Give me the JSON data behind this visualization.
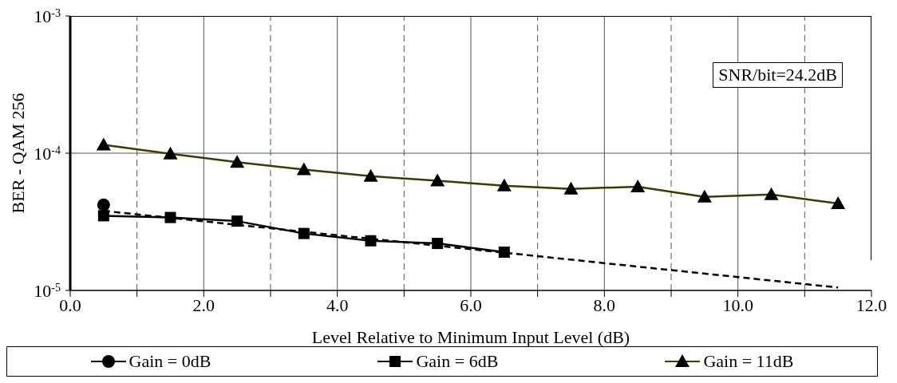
{
  "chart_data": {
    "type": "line",
    "xlabel": "Level Relative to Minimum Input Level (dB)",
    "ylabel": "BER - QAM 256",
    "log": "y",
    "xlim": [
      0,
      12
    ],
    "xticks": [
      {
        "value": 0,
        "label": "0.0"
      },
      {
        "value": 1,
        "label": null
      },
      {
        "value": 2,
        "label": "2.0"
      },
      {
        "value": 3,
        "label": null
      },
      {
        "value": 4,
        "label": "4.0"
      },
      {
        "value": 5,
        "label": null
      },
      {
        "value": 6,
        "label": "6.0"
      },
      {
        "value": 7,
        "label": null
      },
      {
        "value": 8,
        "label": "8.0"
      },
      {
        "value": 9,
        "label": null
      },
      {
        "value": 10,
        "label": "10.0"
      },
      {
        "value": 11,
        "label": null
      },
      {
        "value": 12,
        "label": "12.0"
      }
    ],
    "ylim": [
      1e-05,
      0.001
    ],
    "yticks": [
      {
        "value": 1e-05,
        "label": "10$^{-5}$"
      },
      {
        "value": 0.0001,
        "label": "10$^{-4}$"
      },
      {
        "value": 0.001,
        "label": "10$^{-3}$"
      }
    ],
    "grid": true,
    "legend": "bottom",
    "annotations": [
      "SNR/bit=24.2dB"
    ],
    "series": [
      {
        "name": "Gain = 0dB",
        "color": "#000000",
        "marker": "circle",
        "x": [
          0.5
        ],
        "values": [
          4.2e-05
        ]
      },
      {
        "name": "Gain = 6dB",
        "color": "#000000",
        "marker": "square",
        "x": [
          0.5,
          1.5,
          2.5,
          3.5,
          4.5,
          5.5,
          6.5
        ],
        "values": [
          3.5e-05,
          3.4e-05,
          3.2e-05,
          2.6e-05,
          2.3e-05,
          2.2e-05,
          1.9e-05
        ]
      },
      {
        "name": "Gain = 11dB",
        "color": "#3d3a00",
        "marker": "triangle",
        "x": [
          0.5,
          1.5,
          2.5,
          3.5,
          4.5,
          5.5,
          6.5,
          7.5,
          8.5,
          9.5,
          10.5,
          11.5
        ],
        "values": [
          0.000115,
          9.9e-05,
          8.6e-05,
          7.6e-05,
          6.8e-05,
          6.3e-05,
          5.8e-05,
          5.5e-05,
          5.7e-05,
          4.8e-05,
          5e-05,
          4.3e-05
        ]
      },
      {
        "type": "line",
        "color": "#000000",
        "marker": "none",
        "line_style": "dashed",
        "x": [
          0.5,
          11.5
        ],
        "values": [
          3.8e-05,
          1.05e-05
        ]
      }
    ]
  }
}
